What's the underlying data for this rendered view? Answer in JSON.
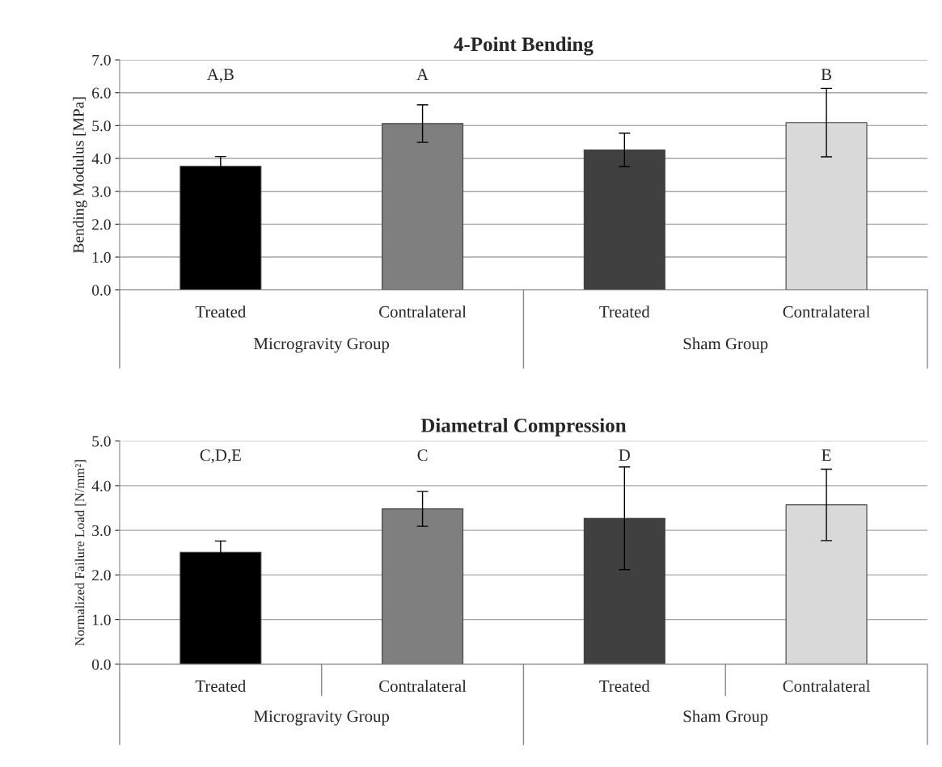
{
  "chart_data": [
    {
      "type": "bar",
      "title": "4-Point Bending",
      "ylabel": "Bending Modulus [MPa]",
      "categories": [
        "Treated",
        "Contralateral",
        "Treated",
        "Contralateral"
      ],
      "values": [
        3.76,
        5.06,
        4.26,
        5.09
      ],
      "errors": [
        0.3,
        0.57,
        0.51,
        1.04
      ],
      "colors": [
        "#000000",
        "#7f7f7f",
        "#404040",
        "#d9d9d9"
      ],
      "ylim": [
        0,
        7
      ],
      "yticks": [
        {
          "value": 0,
          "label": "0.0"
        },
        {
          "value": 1,
          "label": "1.0"
        },
        {
          "value": 2,
          "label": "2.0"
        },
        {
          "value": 3,
          "label": "3.0"
        },
        {
          "value": 4,
          "label": "4.0"
        },
        {
          "value": 5,
          "label": "5.0"
        },
        {
          "value": 6,
          "label": "6.0"
        },
        {
          "value": 7,
          "label": "7.0"
        }
      ],
      "grid": "y",
      "legend": false,
      "annotations": [
        "A,B",
        "A",
        "B",
        "Microgravity Group",
        "Sham Group"
      ]
    },
    {
      "type": "bar",
      "title": "Diametral Compression",
      "ylabel": "Normalized Failure Load [N/mm²]",
      "categories": [
        "Treated",
        "Contralateral",
        "Treated",
        "Contralateral"
      ],
      "values": [
        2.51,
        3.48,
        3.27,
        3.57
      ],
      "errors": [
        0.25,
        0.39,
        1.15,
        0.8
      ],
      "colors": [
        "#000000",
        "#7f7f7f",
        "#404040",
        "#d9d9d9"
      ],
      "ylim": [
        0,
        5
      ],
      "yticks": [
        {
          "value": 0,
          "label": "0.0"
        },
        {
          "value": 1,
          "label": "1.0"
        },
        {
          "value": 2,
          "label": "2.0"
        },
        {
          "value": 3,
          "label": "3.0"
        },
        {
          "value": 4,
          "label": "4.0"
        },
        {
          "value": 5,
          "label": "5.0"
        }
      ],
      "grid": "y",
      "legend": false,
      "annotations": [
        "C,D,E",
        "C",
        "D",
        "E",
        "Microgravity Group",
        "Sham Group"
      ]
    }
  ]
}
